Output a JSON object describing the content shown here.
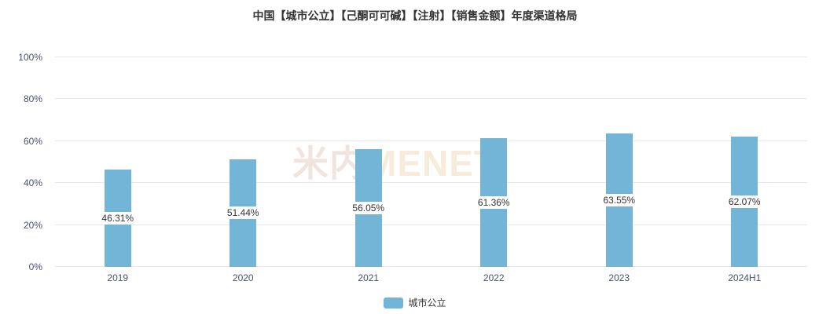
{
  "title": "中国【城市公立】【己酮可可碱】【注射】【销售金额】年度渠道格局",
  "watermark": {
    "cn": "米内",
    "en": "MENET"
  },
  "legend": {
    "label": "城市公立",
    "color": "#72b5d6"
  },
  "chart_data": {
    "type": "bar",
    "title": "中国【城市公立】【己酮可可碱】【注射】【销售金额】年度渠道格局",
    "categories": [
      "2019",
      "2020",
      "2021",
      "2022",
      "2023",
      "2024H1"
    ],
    "series": [
      {
        "name": "城市公立",
        "values": [
          46.31,
          51.44,
          56.05,
          61.36,
          63.55,
          62.07
        ]
      }
    ],
    "value_labels": [
      "46.31%",
      "51.44%",
      "56.05%",
      "61.36%",
      "62.07%"
    ],
    "value_labels_full": [
      "46.31%",
      "51.44%",
      "56.05%",
      "61.36%",
      "63.55%",
      "62.07%"
    ],
    "xlabel": "",
    "ylabel": "",
    "ylim": [
      0,
      100
    ],
    "yticks": [
      "0%",
      "20%",
      "40%",
      "60%",
      "80%",
      "100%"
    ],
    "ytick_values": [
      0,
      20,
      40,
      60,
      80,
      100
    ],
    "grid": true,
    "legend_position": "bottom",
    "bar_color": "#72b5d6"
  }
}
